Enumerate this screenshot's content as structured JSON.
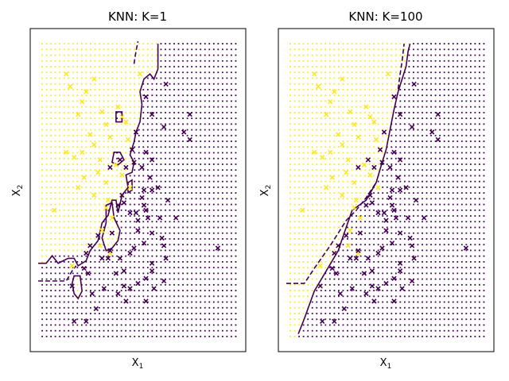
{
  "chart_data": [
    {
      "type": "scatter",
      "title": "KNN: K=1",
      "xlabel": "X",
      "xlabel_sub": "1",
      "ylabel": "X",
      "ylabel_sub": "2",
      "xlim": [
        -2.5,
        2.9
      ],
      "ylim": [
        -3.2,
        3.2
      ],
      "xtick_labels": [],
      "ytick_labels": [],
      "grid": false,
      "colors": {
        "yellow": "#fde725",
        "purple": "#440154"
      },
      "background_grid": {
        "x0": -2.2,
        "x1": 2.65,
        "nx": 45,
        "y0": -2.9,
        "y1": 2.9,
        "ny": 52
      },
      "boundary_solid": [
        [
          -2.3,
          -1.45
        ],
        [
          -2.1,
          -1.45
        ],
        [
          -1.95,
          -1.3
        ],
        [
          -1.8,
          -1.45
        ],
        [
          -1.55,
          -1.35
        ],
        [
          -1.4,
          -1.35
        ],
        [
          -1.3,
          -1.5
        ],
        [
          -1.1,
          -1.4
        ],
        [
          -1.0,
          -1.2
        ],
        [
          -0.8,
          -1.0
        ],
        [
          -0.7,
          -0.65
        ],
        [
          -0.55,
          -0.5
        ],
        [
          -0.45,
          -0.2
        ],
        [
          -0.35,
          -0.2
        ],
        [
          -0.3,
          -0.45
        ],
        [
          -0.2,
          -0.1
        ],
        [
          -0.05,
          0.05
        ],
        [
          -0.1,
          0.3
        ],
        [
          0.05,
          0.35
        ],
        [
          0.1,
          0.55
        ],
        [
          0.0,
          0.7
        ],
        [
          0.1,
          0.95
        ],
        [
          0.15,
          1.15
        ],
        [
          0.25,
          1.35
        ],
        [
          0.3,
          1.7
        ],
        [
          0.25,
          1.95
        ],
        [
          0.35,
          2.2
        ],
        [
          0.5,
          2.3
        ],
        [
          0.6,
          2.2
        ],
        [
          0.7,
          2.4
        ],
        [
          0.7,
          2.9
        ]
      ],
      "boundary_dashed": [
        [
          -2.3,
          -1.8
        ],
        [
          -1.6,
          -1.8
        ],
        [
          -1.45,
          -1.6
        ],
        [
          -1.35,
          -1.5
        ]
      ],
      "boundary_dashed_b": [
        [
          0.1,
          2.5
        ],
        [
          0.15,
          2.75
        ],
        [
          0.2,
          2.95
        ]
      ],
      "islands": [
        [
          [
            -1.4,
            -1.7
          ],
          [
            -1.25,
            -1.7
          ],
          [
            -1.2,
            -2.0
          ],
          [
            -1.3,
            -2.15
          ],
          [
            -1.4,
            -2.05
          ],
          [
            -1.45,
            -1.85
          ],
          [
            -1.4,
            -1.7
          ]
        ],
        [
          [
            -0.6,
            -0.3
          ],
          [
            -0.45,
            -0.25
          ],
          [
            -0.4,
            -0.55
          ],
          [
            -0.25,
            -0.8
          ],
          [
            -0.3,
            -1.0
          ],
          [
            -0.45,
            -1.15
          ],
          [
            -0.6,
            -1.2
          ],
          [
            -0.7,
            -0.95
          ],
          [
            -0.6,
            -0.65
          ],
          [
            -0.6,
            -0.3
          ]
        ],
        [
          [
            -0.35,
            1.55
          ],
          [
            -0.2,
            1.55
          ],
          [
            -0.2,
            1.35
          ],
          [
            -0.35,
            1.35
          ],
          [
            -0.35,
            1.55
          ]
        ],
        [
          [
            -0.45,
            0.55
          ],
          [
            -0.3,
            0.5
          ],
          [
            -0.15,
            0.6
          ],
          [
            -0.25,
            0.75
          ],
          [
            -0.4,
            0.75
          ],
          [
            -0.45,
            0.55
          ]
        ],
        [
          [
            -0.05,
            0.15
          ],
          [
            0.05,
            0.2
          ],
          [
            0.05,
            0.0
          ],
          [
            -0.05,
            -0.05
          ],
          [
            -0.05,
            0.15
          ]
        ]
      ],
      "yellow_points": [
        [
          -1.6,
          2.3
        ],
        [
          -1.5,
          2.05
        ],
        [
          -1.2,
          1.75
        ],
        [
          -1.1,
          1.95
        ],
        [
          -0.9,
          2.2
        ],
        [
          -1.3,
          1.5
        ],
        [
          -0.7,
          1.55
        ],
        [
          -1.0,
          1.1
        ],
        [
          -0.9,
          0.9
        ],
        [
          -1.2,
          0.75
        ],
        [
          -1.4,
          0.65
        ],
        [
          -1.6,
          0.75
        ],
        [
          -0.6,
          1.3
        ],
        [
          -0.5,
          1.05
        ],
        [
          -0.75,
          0.6
        ],
        [
          -0.8,
          0.35
        ],
        [
          -1.15,
          0.25
        ],
        [
          -1.3,
          0.05
        ],
        [
          -0.9,
          -0.1
        ],
        [
          -0.6,
          -0.35
        ],
        [
          -0.45,
          -0.55
        ],
        [
          -0.7,
          -0.8
        ],
        [
          -0.55,
          -0.2
        ],
        [
          -1.9,
          -0.4
        ],
        [
          -0.3,
          1.65
        ],
        [
          -0.2,
          1.45
        ],
        [
          -0.1,
          1.35
        ],
        [
          -0.05,
          1.0
        ],
        [
          -0.35,
          0.5
        ],
        [
          -0.6,
          0.15
        ],
        [
          0.25,
          2.3
        ],
        [
          0.0,
          0.05
        ],
        [
          -0.5,
          -1.25
        ],
        [
          -0.75,
          -1.1
        ],
        [
          -1.45,
          -1.5
        ],
        [
          -0.2,
          0.3
        ]
      ],
      "purple_points": [
        [
          0.9,
          2.1
        ],
        [
          0.4,
          1.85
        ],
        [
          0.55,
          1.5
        ],
        [
          0.85,
          1.25
        ],
        [
          1.35,
          1.15
        ],
        [
          1.5,
          1.0
        ],
        [
          0.15,
          1.15
        ],
        [
          0.05,
          0.8
        ],
        [
          0.4,
          0.75
        ],
        [
          0.55,
          0.6
        ],
        [
          0.3,
          0.45
        ],
        [
          -0.1,
          0.45
        ],
        [
          -0.25,
          0.6
        ],
        [
          -0.5,
          0.45
        ],
        [
          0.3,
          -0.15
        ],
        [
          0.35,
          0.0
        ],
        [
          0.55,
          0.0
        ],
        [
          0.7,
          0.05
        ],
        [
          0.95,
          -0.2
        ],
        [
          0.0,
          -0.45
        ],
        [
          0.15,
          -0.45
        ],
        [
          0.4,
          -0.4
        ],
        [
          0.45,
          -0.55
        ],
        [
          0.75,
          -0.55
        ],
        [
          1.15,
          -0.55
        ],
        [
          0.2,
          -0.8
        ],
        [
          0.55,
          -0.85
        ],
        [
          0.35,
          -1.05
        ],
        [
          0.1,
          -1.15
        ],
        [
          0.8,
          -0.95
        ],
        [
          0.85,
          -1.1
        ],
        [
          0.9,
          -1.35
        ],
        [
          0.55,
          -1.45
        ],
        [
          0.55,
          -1.6
        ],
        [
          0.4,
          -1.75
        ],
        [
          0.85,
          -1.8
        ],
        [
          0.2,
          -1.85
        ],
        [
          0.0,
          -1.95
        ],
        [
          -0.5,
          -1.2
        ],
        [
          -0.55,
          -1.35
        ],
        [
          -0.35,
          -1.65
        ],
        [
          -0.15,
          -1.6
        ],
        [
          -0.15,
          -1.9
        ],
        [
          -0.65,
          -1.95
        ],
        [
          -0.95,
          -2.05
        ],
        [
          -1.15,
          -1.55
        ],
        [
          -1.1,
          -1.25
        ],
        [
          -1.0,
          -1.1
        ],
        [
          -0.8,
          -0.9
        ],
        [
          -1.05,
          -1.65
        ],
        [
          -0.3,
          -2.05
        ],
        [
          -0.1,
          -2.2
        ],
        [
          -0.85,
          -2.35
        ],
        [
          0.4,
          -2.2
        ],
        [
          -1.4,
          -2.6
        ],
        [
          -1.1,
          -2.6
        ],
        [
          -0.3,
          -0.3
        ],
        [
          -0.2,
          -0.1
        ],
        [
          -0.15,
          -0.25
        ],
        [
          -0.45,
          -0.85
        ],
        [
          0.2,
          -0.6
        ],
        [
          0.0,
          -1.25
        ],
        [
          -0.7,
          -1.35
        ],
        [
          -0.25,
          -1.35
        ],
        [
          0.6,
          -1.95
        ],
        [
          -1.45,
          -1.9
        ],
        [
          2.2,
          -1.15
        ],
        [
          1.5,
          1.5
        ],
        [
          0.35,
          -0.3
        ],
        [
          0.1,
          0.55
        ],
        [
          0.5,
          0.25
        ]
      ]
    },
    {
      "type": "scatter",
      "title": "KNN: K=100",
      "xlabel": "X",
      "xlabel_sub": "1",
      "ylabel": "X",
      "ylabel_sub": "2",
      "xlim": [
        -2.5,
        2.9
      ],
      "ylim": [
        -3.2,
        3.2
      ],
      "xtick_labels": [],
      "ytick_labels": [],
      "grid": false,
      "colors": {
        "yellow": "#fde725",
        "purple": "#440154"
      },
      "background_grid": {
        "x0": -2.2,
        "x1": 2.65,
        "nx": 45,
        "y0": -2.9,
        "y1": 2.9,
        "ny": 52
      },
      "boundary_solid": [
        [
          -2.0,
          -2.85
        ],
        [
          -1.85,
          -2.55
        ],
        [
          -1.6,
          -2.0
        ],
        [
          -1.3,
          -1.6
        ],
        [
          -1.0,
          -1.2
        ],
        [
          -0.85,
          -0.85
        ],
        [
          -0.65,
          -0.4
        ],
        [
          -0.3,
          -0.2
        ],
        [
          -0.05,
          0.15
        ],
        [
          0.1,
          0.55
        ],
        [
          0.2,
          0.8
        ],
        [
          0.3,
          1.2
        ],
        [
          0.4,
          1.6
        ],
        [
          0.5,
          1.95
        ],
        [
          0.6,
          2.2
        ],
        [
          0.7,
          2.45
        ],
        [
          0.75,
          2.75
        ],
        [
          0.8,
          2.9
        ]
      ],
      "boundary_dashed": [
        [
          -2.3,
          -1.85
        ],
        [
          -1.85,
          -1.85
        ],
        [
          -1.6,
          -1.55
        ],
        [
          -1.2,
          -1.1
        ],
        [
          -1.0,
          -0.85
        ],
        [
          -0.8,
          -0.6
        ],
        [
          -0.55,
          -0.4
        ],
        [
          -0.3,
          -0.15
        ],
        [
          -0.05,
          0.15
        ]
      ],
      "boundary_dashed_b": [
        [
          0.5,
          2.0
        ],
        [
          0.55,
          2.3
        ],
        [
          0.6,
          2.55
        ],
        [
          0.65,
          2.9
        ]
      ],
      "islands": [],
      "yellow_points": [
        [
          -1.6,
          2.3
        ],
        [
          -1.5,
          2.05
        ],
        [
          -1.2,
          1.75
        ],
        [
          -1.1,
          1.95
        ],
        [
          -0.9,
          2.2
        ],
        [
          -1.3,
          1.5
        ],
        [
          -0.7,
          1.55
        ],
        [
          -1.0,
          1.1
        ],
        [
          -0.9,
          0.9
        ],
        [
          -1.2,
          0.75
        ],
        [
          -1.4,
          0.65
        ],
        [
          -1.6,
          0.75
        ],
        [
          -0.6,
          1.3
        ],
        [
          -0.5,
          1.05
        ],
        [
          -0.75,
          0.6
        ],
        [
          -0.8,
          0.35
        ],
        [
          -1.15,
          0.25
        ],
        [
          -1.3,
          0.05
        ],
        [
          -0.9,
          -0.1
        ],
        [
          -0.6,
          -0.35
        ],
        [
          -0.45,
          -0.55
        ],
        [
          -0.7,
          -0.8
        ],
        [
          -0.55,
          -0.2
        ],
        [
          -1.9,
          -0.4
        ],
        [
          -0.3,
          1.65
        ],
        [
          -0.2,
          1.45
        ],
        [
          -0.1,
          1.35
        ],
        [
          -0.05,
          1.0
        ],
        [
          -0.35,
          0.5
        ],
        [
          -0.6,
          0.15
        ],
        [
          0.25,
          2.3
        ],
        [
          0.0,
          0.05
        ],
        [
          -0.5,
          -1.25
        ],
        [
          -0.75,
          -1.1
        ],
        [
          -1.45,
          -1.5
        ],
        [
          -0.2,
          0.3
        ]
      ],
      "purple_points": [
        [
          0.9,
          2.1
        ],
        [
          0.4,
          1.85
        ],
        [
          0.55,
          1.5
        ],
        [
          0.85,
          1.25
        ],
        [
          1.35,
          1.15
        ],
        [
          1.5,
          1.0
        ],
        [
          0.15,
          1.15
        ],
        [
          0.05,
          0.8
        ],
        [
          0.4,
          0.75
        ],
        [
          0.55,
          0.6
        ],
        [
          0.3,
          0.45
        ],
        [
          -0.1,
          0.45
        ],
        [
          -0.25,
          0.6
        ],
        [
          -0.5,
          0.45
        ],
        [
          0.3,
          -0.15
        ],
        [
          0.35,
          0.0
        ],
        [
          0.55,
          0.0
        ],
        [
          0.7,
          0.05
        ],
        [
          0.95,
          -0.2
        ],
        [
          0.0,
          -0.45
        ],
        [
          0.15,
          -0.45
        ],
        [
          0.4,
          -0.4
        ],
        [
          0.45,
          -0.55
        ],
        [
          0.75,
          -0.55
        ],
        [
          1.15,
          -0.55
        ],
        [
          0.2,
          -0.8
        ],
        [
          0.55,
          -0.85
        ],
        [
          0.35,
          -1.05
        ],
        [
          0.1,
          -1.15
        ],
        [
          0.8,
          -0.95
        ],
        [
          0.85,
          -1.1
        ],
        [
          0.9,
          -1.35
        ],
        [
          0.55,
          -1.45
        ],
        [
          0.55,
          -1.6
        ],
        [
          0.4,
          -1.75
        ],
        [
          0.85,
          -1.8
        ],
        [
          0.2,
          -1.85
        ],
        [
          0.0,
          -1.95
        ],
        [
          -0.5,
          -1.2
        ],
        [
          -0.55,
          -1.35
        ],
        [
          -0.35,
          -1.65
        ],
        [
          -0.15,
          -1.6
        ],
        [
          -0.15,
          -1.9
        ],
        [
          -0.65,
          -1.95
        ],
        [
          -0.95,
          -2.05
        ],
        [
          -1.15,
          -1.55
        ],
        [
          -1.1,
          -1.25
        ],
        [
          -1.0,
          -1.1
        ],
        [
          -0.8,
          -0.9
        ],
        [
          -1.05,
          -1.65
        ],
        [
          -0.3,
          -2.05
        ],
        [
          -0.1,
          -2.2
        ],
        [
          -0.85,
          -2.35
        ],
        [
          0.4,
          -2.2
        ],
        [
          -1.4,
          -2.6
        ],
        [
          -1.1,
          -2.6
        ],
        [
          -0.3,
          -0.3
        ],
        [
          -0.2,
          -0.1
        ],
        [
          -0.15,
          -0.25
        ],
        [
          -0.45,
          -0.85
        ],
        [
          0.2,
          -0.6
        ],
        [
          0.0,
          -1.25
        ],
        [
          -0.7,
          -1.35
        ],
        [
          -0.25,
          -1.35
        ],
        [
          0.6,
          -1.95
        ],
        [
          -1.45,
          -1.9
        ],
        [
          2.2,
          -1.15
        ],
        [
          1.5,
          1.5
        ],
        [
          0.35,
          -0.3
        ],
        [
          0.1,
          0.55
        ],
        [
          0.5,
          0.25
        ]
      ]
    }
  ]
}
